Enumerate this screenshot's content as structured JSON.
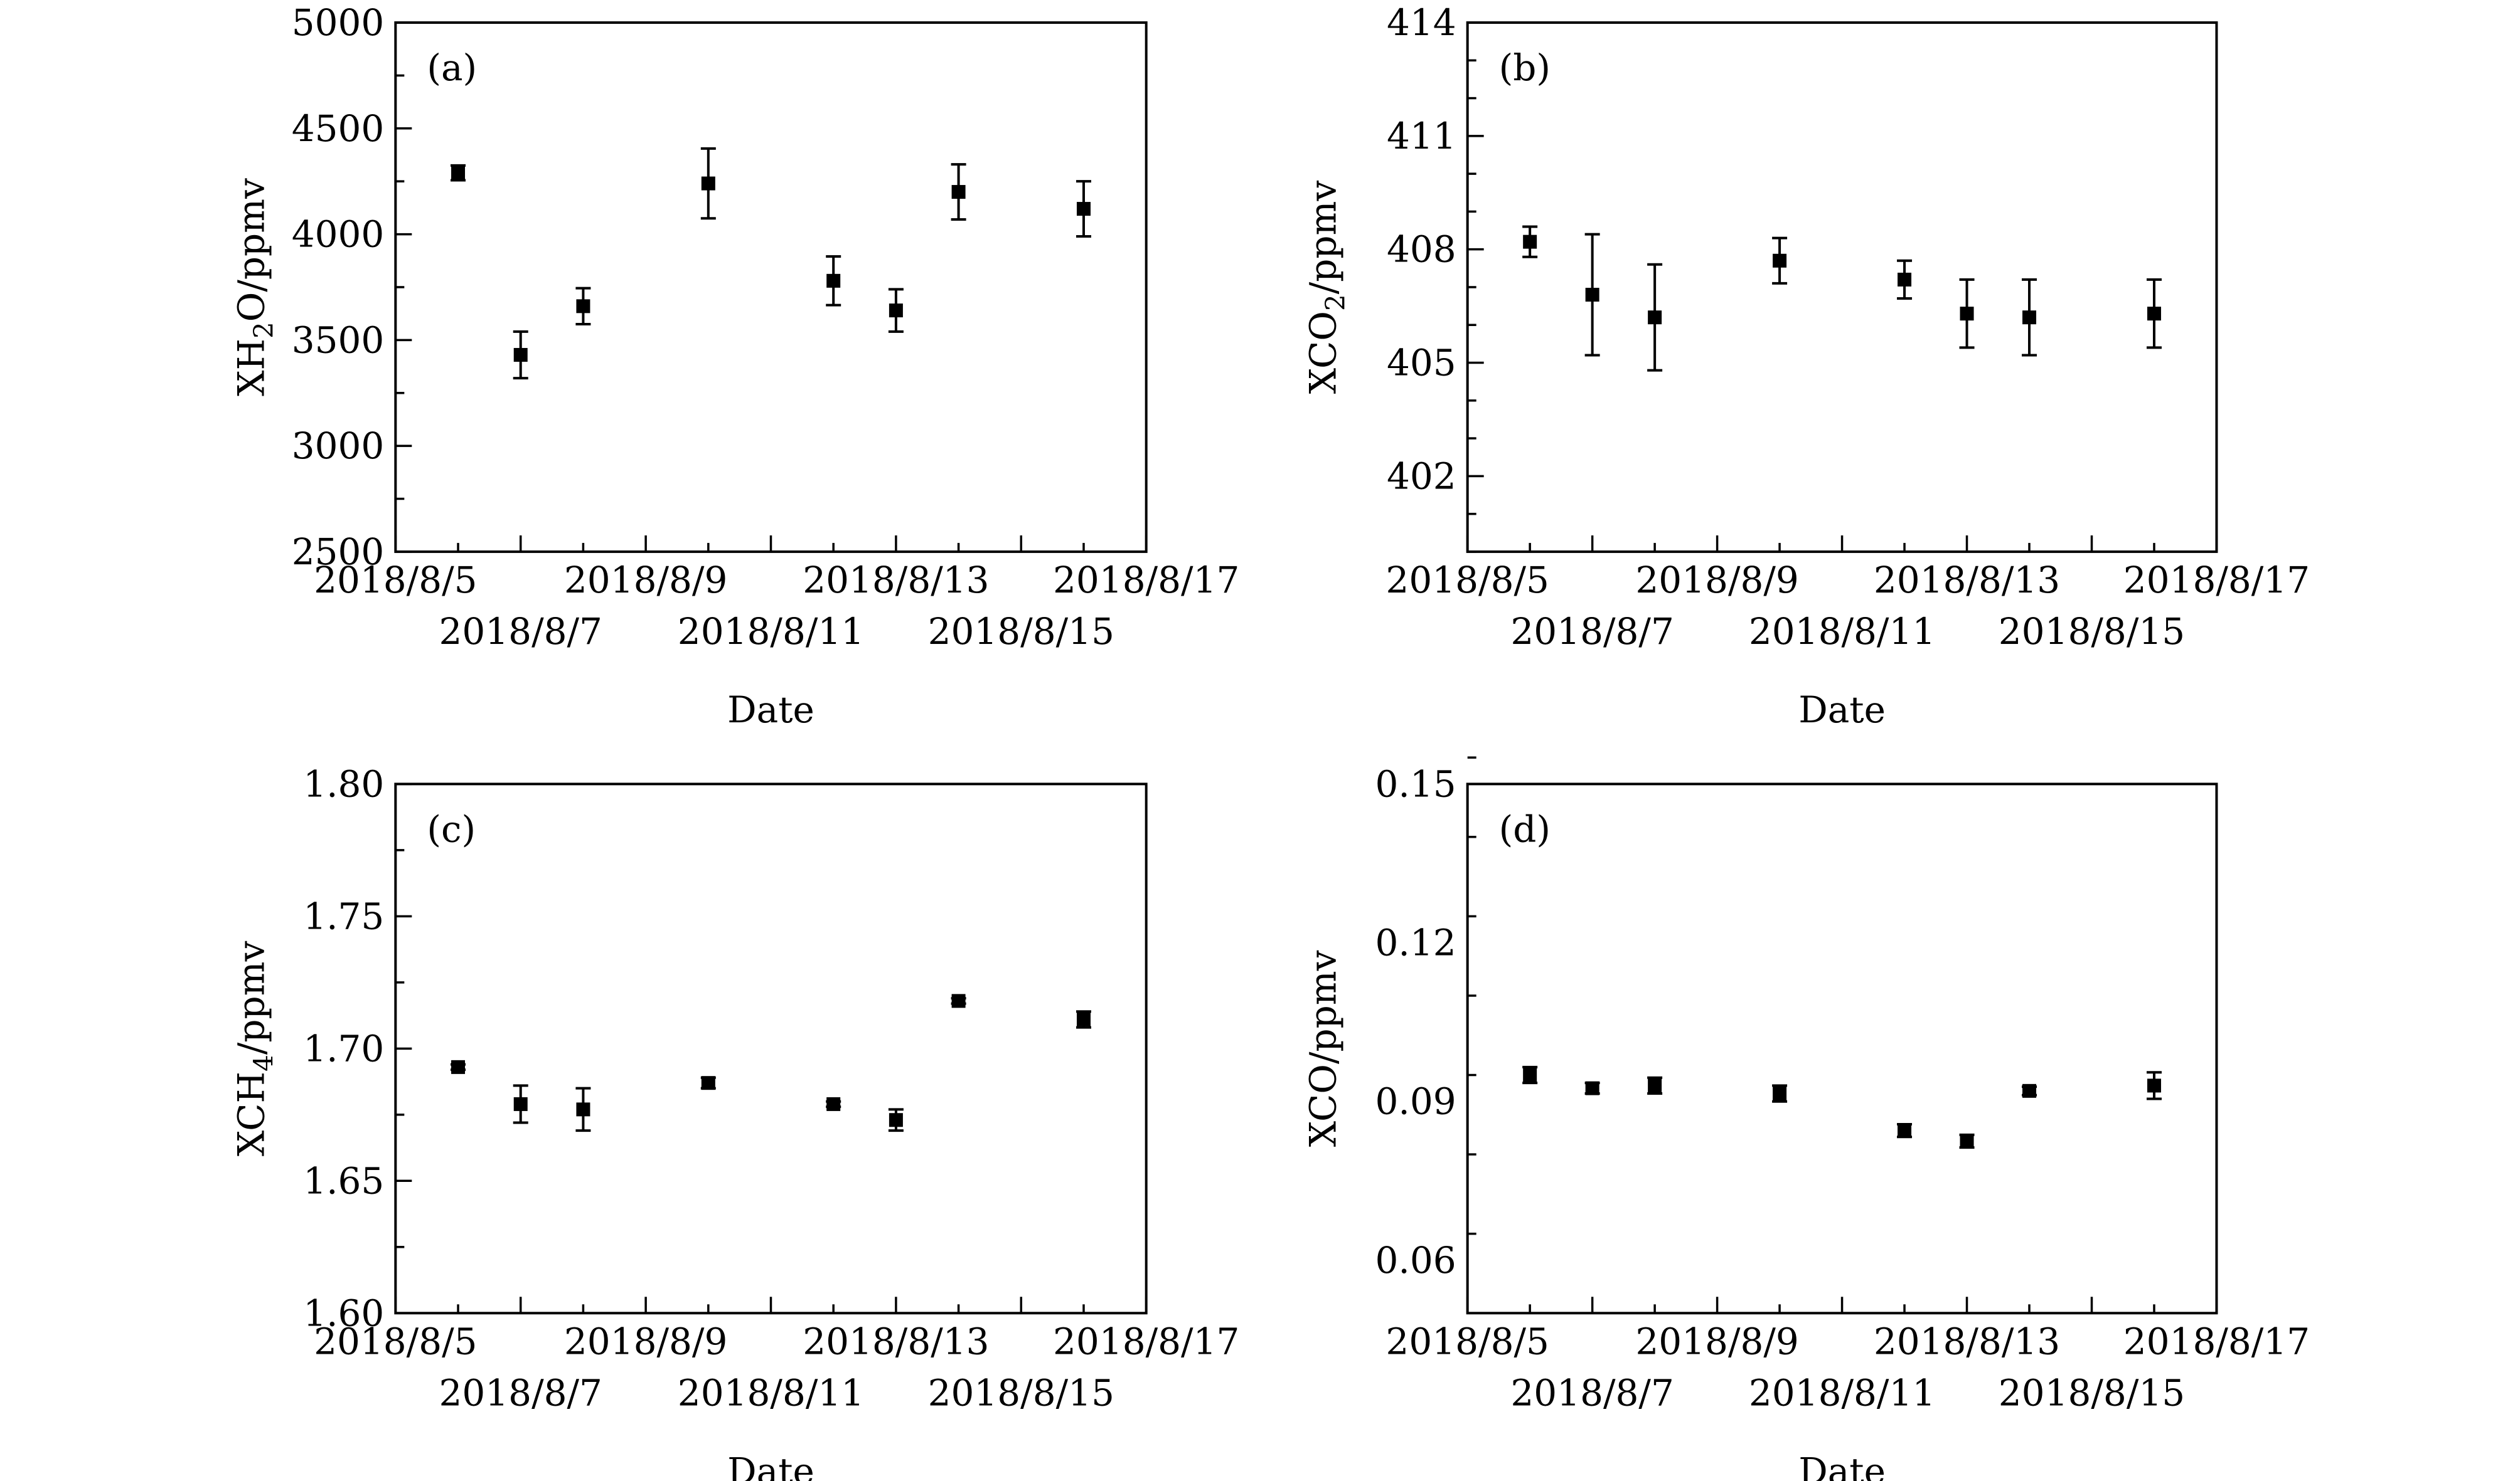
{
  "chart_data": [
    {
      "type": "scatter",
      "panel_label": "(a)",
      "title": "",
      "xlabel": "Date",
      "ylabel_main": "XH",
      "ylabel_sub": "2",
      "ylabel_rest": "O/ppmv",
      "xlim": [
        5,
        17
      ],
      "x_ticks": [
        5,
        7,
        9,
        11,
        13,
        15,
        17
      ],
      "x_tick_labels": [
        "2018/8/5",
        "2018/8/7",
        "2018/8/9",
        "2018/8/11",
        "2018/8/13",
        "2018/8/15",
        "2018/8/17"
      ],
      "ylim": [
        2500,
        5000
      ],
      "y_ticks": [
        2500,
        3000,
        3500,
        4000,
        4500,
        5000
      ],
      "y_tick_labels": [
        "2500",
        "3000",
        "3500",
        "4000",
        "4500",
        "5000"
      ],
      "y_minor_step": 250,
      "x": [
        6.0,
        7.0,
        8.0,
        10.0,
        12.0,
        13.0,
        14.0,
        16.0
      ],
      "values": [
        4290,
        3430,
        3660,
        4240,
        3780,
        3640,
        4200,
        4120
      ],
      "err": [
        35,
        110,
        85,
        165,
        115,
        100,
        130,
        130
      ]
    },
    {
      "type": "scatter",
      "panel_label": "(b)",
      "title": "",
      "xlabel": "Date",
      "ylabel_main": "XCO",
      "ylabel_sub": "2",
      "ylabel_rest": "/ppmv",
      "xlim": [
        5,
        17
      ],
      "x_ticks": [
        5,
        7,
        9,
        11,
        13,
        15,
        17
      ],
      "x_tick_labels": [
        "2018/8/5",
        "2018/8/7",
        "2018/8/9",
        "2018/8/11",
        "2018/8/13",
        "2018/8/15",
        "2018/8/17"
      ],
      "ylim": [
        400,
        414
      ],
      "y_ticks": [
        402,
        405,
        408,
        411,
        414
      ],
      "y_tick_labels": [
        "402",
        "405",
        "408",
        "411",
        "414"
      ],
      "y_minor_step": 1,
      "x": [
        6.0,
        7.0,
        8.0,
        10.0,
        12.0,
        13.0,
        14.0,
        16.0
      ],
      "values": [
        408.2,
        406.8,
        406.2,
        407.7,
        407.2,
        406.3,
        406.2,
        406.3
      ],
      "err": [
        0.4,
        1.6,
        1.4,
        0.6,
        0.5,
        0.9,
        1.0,
        0.9
      ]
    },
    {
      "type": "scatter",
      "panel_label": "(c)",
      "title": "",
      "xlabel": "Date",
      "ylabel_main": "XCH",
      "ylabel_sub": "4",
      "ylabel_rest": "/ppmv",
      "xlim": [
        5,
        17
      ],
      "x_ticks": [
        5,
        7,
        9,
        11,
        13,
        15,
        17
      ],
      "x_tick_labels": [
        "2018/8/5",
        "2018/8/7",
        "2018/8/9",
        "2018/8/11",
        "2018/8/13",
        "2018/8/15",
        "2018/8/17"
      ],
      "ylim": [
        1.6,
        1.8
      ],
      "y_ticks": [
        1.6,
        1.65,
        1.7,
        1.75,
        1.8
      ],
      "y_tick_labels": [
        "1.60",
        "1.65",
        "1.70",
        "1.75",
        "1.80"
      ],
      "y_minor_step": 0.025,
      "x": [
        6.0,
        7.0,
        8.0,
        10.0,
        12.0,
        13.0,
        14.0,
        16.0
      ],
      "values": [
        1.693,
        1.679,
        1.677,
        1.687,
        1.679,
        1.673,
        1.718,
        1.711
      ],
      "err": [
        0.001,
        0.007,
        0.008,
        0.002,
        0.001,
        0.004,
        0.001,
        0.003
      ]
    },
    {
      "type": "scatter",
      "panel_label": "(d)",
      "title": "",
      "xlabel": "Date",
      "ylabel_main": "XCO/ppmv",
      "ylabel_sub": "",
      "ylabel_rest": "",
      "xlim": [
        5,
        17
      ],
      "x_ticks": [
        5,
        7,
        9,
        11,
        13,
        15,
        17
      ],
      "x_tick_labels": [
        "2018/8/5",
        "2018/8/7",
        "2018/8/9",
        "2018/8/11",
        "2018/8/13",
        "2018/8/15",
        "2018/8/17"
      ],
      "ylim": [
        0.05,
        0.15
      ],
      "y_ticks": [
        0.06,
        0.09,
        0.12,
        0.15
      ],
      "y_tick_labels": [
        "0.06",
        "0.09",
        "0.12",
        "0.15"
      ],
      "y_minor_step": 0.015,
      "x": [
        6.0,
        7.0,
        8.0,
        10.0,
        12.0,
        13.0,
        14.0,
        16.0
      ],
      "values": [
        0.095,
        0.0925,
        0.093,
        0.0915,
        0.0845,
        0.0825,
        0.092,
        0.093
      ],
      "err": [
        0.0015,
        0.001,
        0.0015,
        0.0015,
        0.0012,
        0.0012,
        0.0008,
        0.0025
      ]
    }
  ]
}
